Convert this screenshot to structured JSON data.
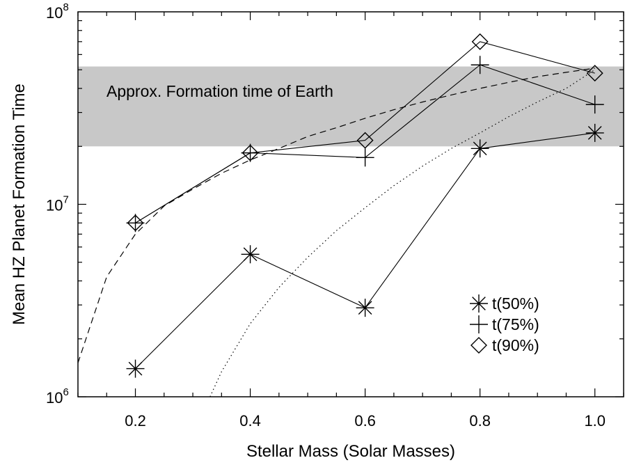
{
  "chart_data": {
    "type": "line",
    "xlabel": "Stellar Mass (Solar Masses)",
    "ylabel": "Mean HZ Planet Formation Time",
    "xlim": [
      0.1,
      1.05
    ],
    "ylim": [
      1000000,
      100000000
    ],
    "yscale": "log",
    "x_ticks": [
      {
        "value": 0.2,
        "label": "0.2"
      },
      {
        "value": 0.4,
        "label": "0.4"
      },
      {
        "value": 0.6,
        "label": "0.6"
      },
      {
        "value": 0.8,
        "label": "0.8"
      },
      {
        "value": 1.0,
        "label": "1.0"
      }
    ],
    "y_ticks": [
      {
        "value": 1000000,
        "base": "10",
        "exp": "6"
      },
      {
        "value": 10000000,
        "base": "10",
        "exp": "7"
      },
      {
        "value": 100000000,
        "base": "10",
        "exp": "8"
      }
    ],
    "x": [
      0.2,
      0.4,
      0.6,
      0.8,
      1.0
    ],
    "series": [
      {
        "name": "t(50%)",
        "marker": "asterisk",
        "values": [
          1400000,
          5500000,
          2900000,
          19500000,
          23500000
        ]
      },
      {
        "name": "t(75%)",
        "marker": "plus",
        "values": [
          8000000,
          18500000,
          17500000,
          53000000,
          33000000
        ]
      },
      {
        "name": "t(90%)",
        "marker": "diamond",
        "values": [
          8000000,
          18500000,
          21500000,
          70000000,
          48000000
        ]
      }
    ],
    "curves": [
      {
        "style": "dashed",
        "x": [
          0.1,
          0.15,
          0.2,
          0.25,
          0.3,
          0.35,
          0.4,
          0.45,
          0.5,
          0.55,
          0.6,
          0.65,
          0.7,
          0.75,
          0.8,
          0.85,
          0.9,
          0.95,
          1.0
        ],
        "values": [
          1500000,
          4200000,
          7000000,
          9800000,
          12000000,
          14500000,
          17000000,
          19500000,
          22500000,
          25000000,
          28000000,
          31000000,
          34000000,
          37000000,
          40000000,
          43000000,
          46000000,
          48500000,
          51000000
        ]
      },
      {
        "style": "dotted",
        "x": [
          0.33,
          0.35,
          0.4,
          0.45,
          0.5,
          0.55,
          0.6,
          0.65,
          0.7,
          0.75,
          0.8,
          0.85,
          0.9,
          0.95,
          1.0
        ],
        "values": [
          1000000,
          1350000,
          2400000,
          3700000,
          5300000,
          7300000,
          9600000,
          12500000,
          15800000,
          19500000,
          23500000,
          28500000,
          34000000,
          40000000,
          50000000
        ]
      }
    ],
    "band": {
      "y_low": 20000000,
      "y_high": 52000000,
      "color": "#c8c8c8",
      "label": "Approx. Formation time of Earth"
    },
    "legend": {
      "position": "lower-right"
    },
    "grid": false
  }
}
